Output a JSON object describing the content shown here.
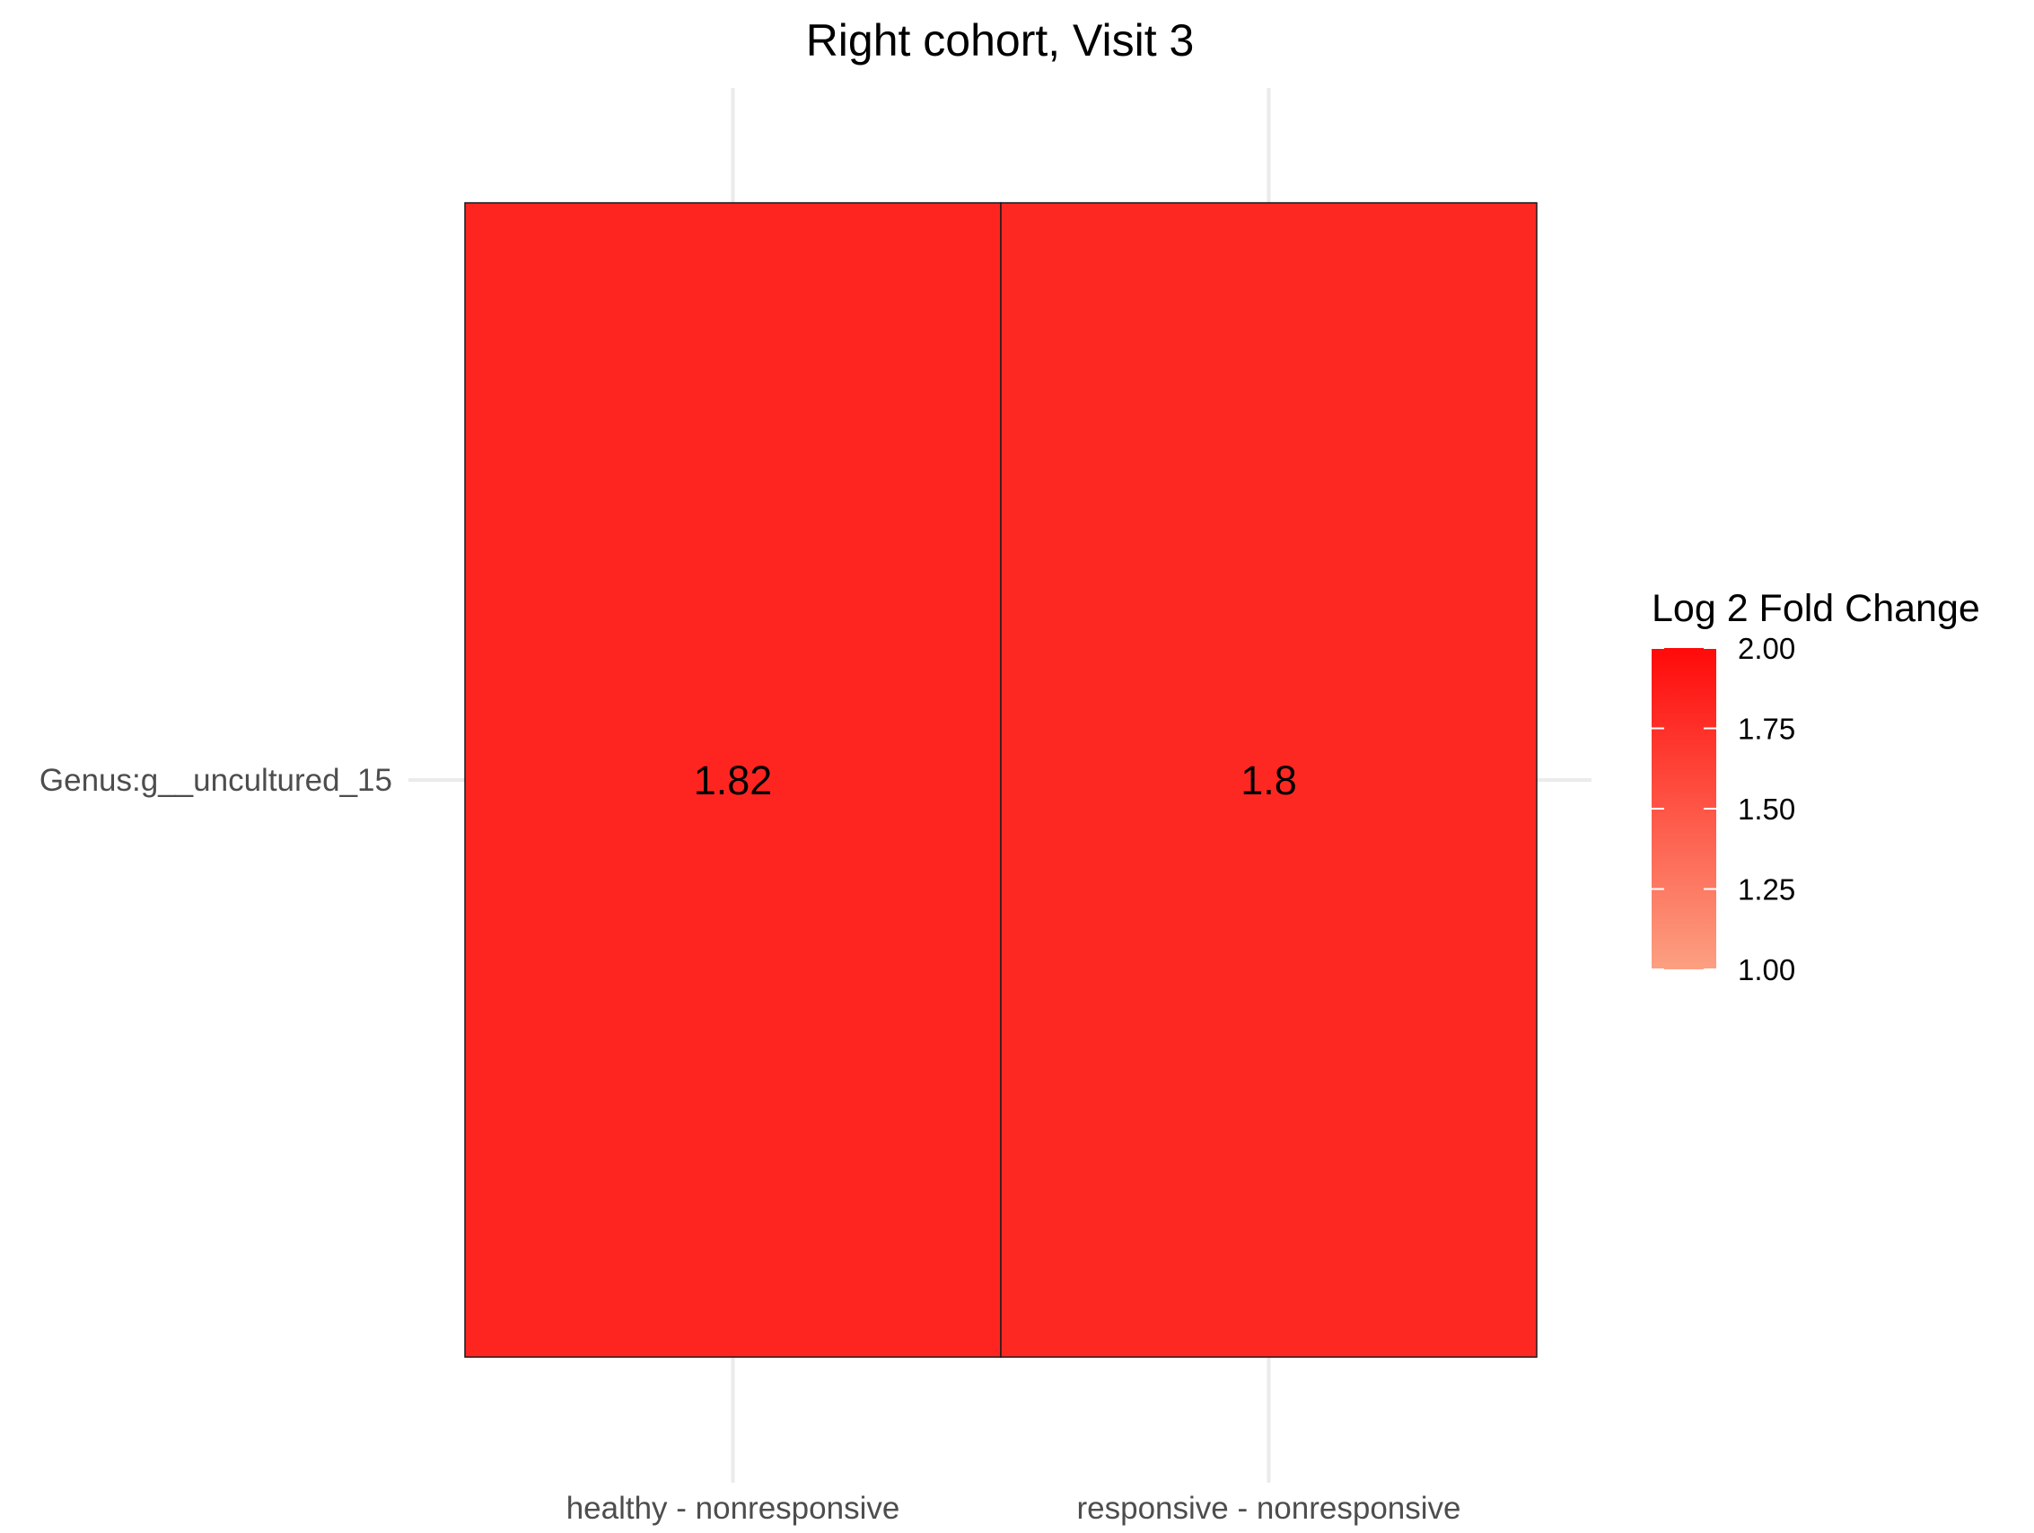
{
  "chart_data": {
    "type": "heatmap",
    "title": "Right cohort, Visit 3",
    "xlabel": "",
    "ylabel": "",
    "x_categories": [
      "healthy - nonresponsive",
      "responsive - nonresponsive"
    ],
    "y_categories": [
      "Genus:g__uncultured_15"
    ],
    "cells": [
      {
        "x": "healthy - nonresponsive",
        "y": "Genus:g__uncultured_15",
        "value": 1.82,
        "label": "1.82"
      },
      {
        "x": "responsive - nonresponsive",
        "y": "Genus:g__uncultured_15",
        "value": 1.8,
        "label": "1.8"
      }
    ],
    "legend": {
      "title": "Log 2 Fold Change",
      "placement": "right",
      "range": [
        1.0,
        2.0
      ],
      "ticks": [
        "2.00",
        "1.75",
        "1.50",
        "1.25",
        "1.00"
      ],
      "tick_values": [
        2.0,
        1.75,
        1.5,
        1.25,
        1.0
      ],
      "color_low": "#fca082",
      "color_high": "#ff0a0a"
    },
    "grid": true
  }
}
